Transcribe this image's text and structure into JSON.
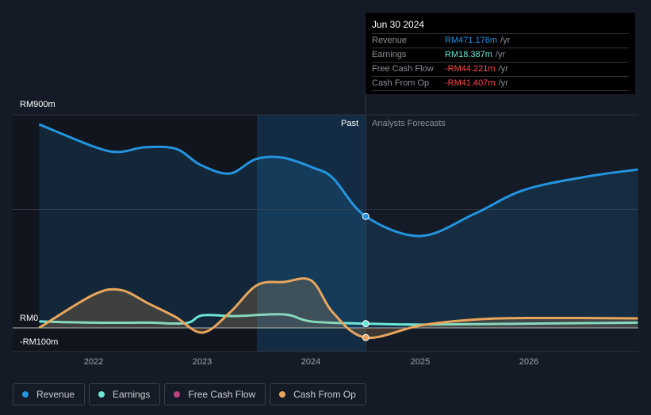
{
  "tooltip": {
    "date": "Jun 30 2024",
    "rows": [
      {
        "label": "Revenue",
        "value": "RM471.176m",
        "unit": "/yr",
        "color": "#2394df"
      },
      {
        "label": "Earnings",
        "value": "RM18.387m",
        "unit": "/yr",
        "color": "#6ee6d6"
      },
      {
        "label": "Free Cash Flow",
        "value": "-RM44.221m",
        "unit": "/yr",
        "color": "#ff4a4a"
      },
      {
        "label": "Cash From Op",
        "value": "-RM41.407m",
        "unit": "/yr",
        "color": "#ff4a4a"
      }
    ]
  },
  "regions": {
    "past": "Past",
    "forecast": "Analysts Forecasts"
  },
  "chart_data": {
    "type": "line",
    "ylim": [
      -100,
      900
    ],
    "y_tick_labels": [
      "RM900m",
      "RM0",
      "-RM100m"
    ],
    "x_tick_labels": [
      "2022",
      "2023",
      "2024",
      "2025",
      "2026"
    ],
    "x_ticks": [
      2022,
      2023,
      2024,
      2025,
      2026
    ],
    "xlim": [
      2021.5,
      2027.0
    ],
    "past_end": 2024.5,
    "shade_start": 2023.5,
    "series": [
      {
        "name": "Revenue",
        "color": "#2394df",
        "fill": true,
        "points": [
          [
            2021.5,
            860
          ],
          [
            2022.0,
            766
          ],
          [
            2022.23,
            743
          ],
          [
            2022.47,
            763
          ],
          [
            2022.76,
            756
          ],
          [
            2022.98,
            689
          ],
          [
            2023.25,
            652
          ],
          [
            2023.49,
            713
          ],
          [
            2023.74,
            719
          ],
          [
            2024.02,
            676
          ],
          [
            2024.2,
            632
          ],
          [
            2024.5,
            471
          ],
          [
            2025.0,
            388
          ],
          [
            2025.5,
            482
          ],
          [
            2025.95,
            582
          ],
          [
            2026.53,
            639
          ],
          [
            2027.0,
            669
          ]
        ]
      },
      {
        "name": "Earnings",
        "color": "#6ee6d6",
        "fill": false,
        "points": [
          [
            2021.5,
            27
          ],
          [
            2022.0,
            22
          ],
          [
            2022.5,
            22
          ],
          [
            2022.85,
            20
          ],
          [
            2023.0,
            53
          ],
          [
            2023.3,
            50
          ],
          [
            2023.75,
            57
          ],
          [
            2024.0,
            27
          ],
          [
            2024.5,
            18
          ],
          [
            2025.0,
            14
          ],
          [
            2026.0,
            18
          ],
          [
            2027.0,
            22
          ]
        ]
      },
      {
        "name": "Free Cash Flow",
        "color": "#c0427f",
        "fill": false,
        "points": []
      },
      {
        "name": "Cash From Op",
        "color": "#e8a65c",
        "fill": true,
        "points": [
          [
            2021.5,
            0
          ],
          [
            2022.0,
            140
          ],
          [
            2022.25,
            160
          ],
          [
            2022.5,
            104
          ],
          [
            2022.75,
            47
          ],
          [
            2023.0,
            -20
          ],
          [
            2023.25,
            64
          ],
          [
            2023.5,
            180
          ],
          [
            2023.75,
            194
          ],
          [
            2024.0,
            200
          ],
          [
            2024.2,
            64
          ],
          [
            2024.5,
            -41
          ],
          [
            2025.0,
            10
          ],
          [
            2025.5,
            35
          ],
          [
            2026.0,
            42
          ],
          [
            2027.0,
            40
          ]
        ]
      }
    ]
  }
}
